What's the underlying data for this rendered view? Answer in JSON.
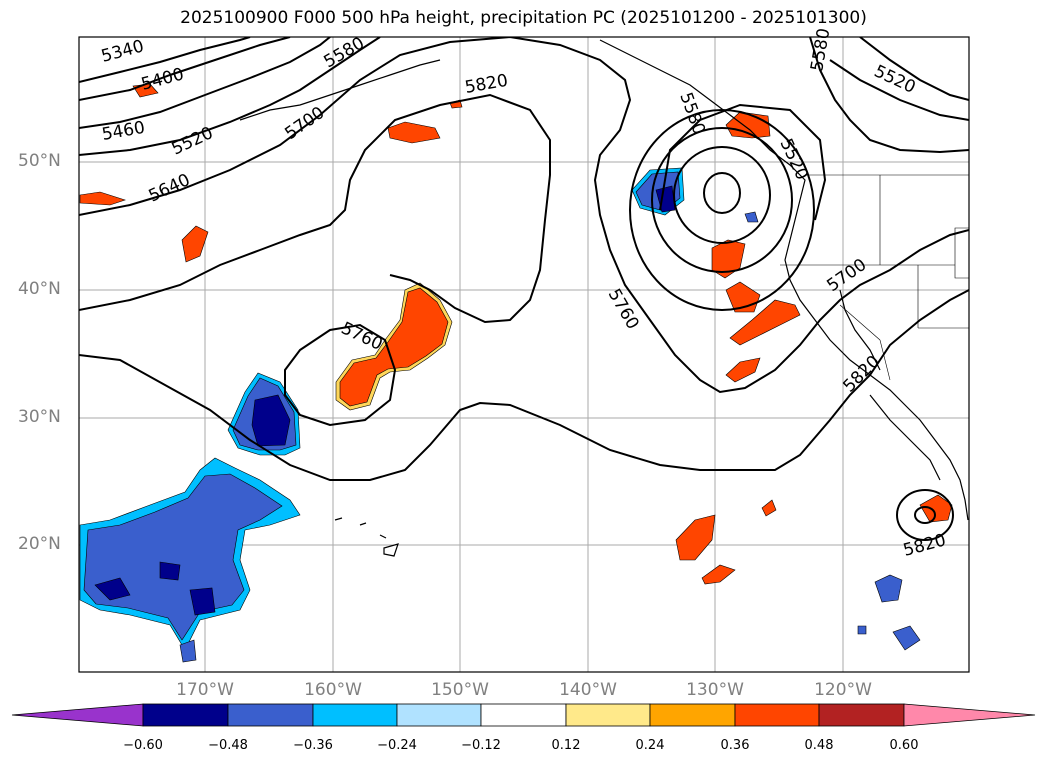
{
  "title": "2025100900 F000 500 hPa height, precipitation PC (2025101200 - 2025101300)",
  "map": {
    "lat_labels": [
      "50°N",
      "40°N",
      "30°N",
      "20°N"
    ],
    "lon_labels": [
      "170°W",
      "160°W",
      "150°W",
      "140°W",
      "130°W",
      "120°W"
    ],
    "contour_labels": [
      "5340",
      "5400",
      "5460",
      "5520",
      "5580",
      "5640",
      "5700",
      "5820",
      "5760",
      "5760",
      "5700",
      "5820",
      "5820",
      "5580",
      "5520",
      "5520",
      "5580"
    ],
    "grid": true,
    "land_color": "#ffffff",
    "contour_color": "#000000"
  },
  "colorbar": {
    "ticks": [
      "−0.60",
      "−0.48",
      "−0.36",
      "−0.24",
      "−0.12",
      "0.12",
      "0.24",
      "0.36",
      "0.48",
      "0.60"
    ],
    "colors": [
      "#9933cc",
      "#00008b",
      "#3a5fcd",
      "#00bfff",
      "#b0e2ff",
      "#ffffff",
      "#ffe98a",
      "#ffa500",
      "#ff4500",
      "#b22222",
      "#ff88aa"
    ],
    "extend": "both"
  }
}
